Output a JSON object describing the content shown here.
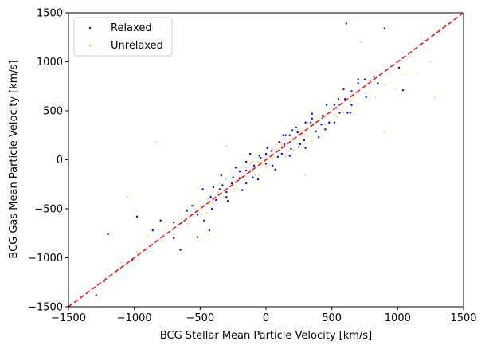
{
  "chart_data": {
    "type": "scatter",
    "title": "",
    "xlabel": "BCG Stellar Mean Particle Velocity [km/s]",
    "ylabel": "BCG Gas Mean Particle Velocity [km/s]",
    "xlim": [
      -1500,
      1500
    ],
    "ylim": [
      -1500,
      1500
    ],
    "xticks": [
      -1500,
      -1000,
      -500,
      0,
      500,
      1000,
      1500
    ],
    "yticks": [
      -1500,
      -1000,
      -500,
      0,
      500,
      1000,
      1500
    ],
    "grid": false,
    "legend": "top-left",
    "reference_line": {
      "style": "dashed",
      "color": "#ff0000",
      "x": [
        -1500,
        1500
      ],
      "y": [
        -1500,
        1500
      ]
    },
    "series": [
      {
        "name": "Relaxed",
        "color": "#0000ff",
        "x": [
          -1290,
          -1230,
          -1015,
          -650,
          -520,
          -430,
          610,
          900,
          1010,
          1040,
          -1200,
          -860,
          -980,
          -700,
          -640,
          -560,
          -600,
          -520,
          -470,
          -420,
          -380,
          -350,
          -300,
          -260,
          -200,
          -150,
          -90,
          -40,
          0,
          40,
          90,
          140,
          190,
          240,
          290,
          340,
          380,
          430,
          480,
          520,
          560,
          600,
          650,
          700,
          760,
          820,
          -480,
          -410,
          -340,
          -290,
          -230,
          -180,
          -120,
          -60,
          10,
          70,
          130,
          180,
          230,
          300,
          350,
          400,
          460,
          520,
          590,
          640,
          700,
          -250,
          -150,
          -50,
          50,
          150,
          250,
          350,
          450,
          300,
          200,
          100,
          0,
          -100,
          -200,
          -300,
          -400,
          550,
          650,
          750,
          850,
          -700,
          -800,
          180,
          420,
          -150,
          260,
          620,
          -330,
          120
        ],
        "y": [
          -1380,
          -1240,
          -1020,
          -920,
          -790,
          -720,
          1390,
          1340,
          940,
          710,
          -760,
          -720,
          -580,
          -800,
          -640,
          -470,
          -520,
          -560,
          -620,
          -380,
          -410,
          -300,
          -330,
          -240,
          -190,
          -110,
          -60,
          20,
          -40,
          90,
          30,
          160,
          110,
          280,
          200,
          380,
          290,
          450,
          380,
          560,
          480,
          620,
          560,
          780,
          640,
          850,
          -300,
          -500,
          -160,
          -420,
          -80,
          -310,
          60,
          -200,
          120,
          -100,
          250,
          40,
          330,
          120,
          470,
          230,
          560,
          380,
          720,
          480,
          820,
          -180,
          -240,
          40,
          -60,
          250,
          130,
          420,
          310,
          380,
          300,
          180,
          60,
          -180,
          -120,
          -380,
          -280,
          620,
          700,
          820,
          780,
          -640,
          -620,
          250,
          360,
          -20,
          160,
          480,
          -260,
          60
        ]
      },
      {
        "name": "Unrelaxed",
        "color": "#ffa500",
        "x": [
          -1200,
          -1100,
          -980,
          -900,
          -820,
          -760,
          -700,
          -640,
          -590,
          -540,
          -490,
          -440,
          -400,
          -360,
          -320,
          -280,
          -240,
          -200,
          -160,
          -120,
          -80,
          -40,
          0,
          40,
          80,
          120,
          160,
          200,
          240,
          280,
          320,
          360,
          400,
          440,
          490,
          540,
          590,
          640,
          700,
          760,
          830,
          900,
          980,
          1060,
          1150,
          1250,
          1380,
          -550,
          -450,
          -350,
          -250,
          -150,
          -50,
          50,
          150,
          250,
          350,
          450,
          -600,
          -500,
          -420,
          -300,
          -220,
          -100,
          20,
          110,
          210,
          320,
          420,
          520,
          -830,
          720,
          1150,
          1280,
          -1050,
          -300,
          300,
          900,
          0,
          -60,
          60,
          -20,
          20,
          -120,
          120,
          540
        ],
        "y": [
          -1120,
          -1050,
          -940,
          -780,
          -850,
          -690,
          -760,
          -600,
          -650,
          -500,
          -560,
          -400,
          -460,
          -330,
          -380,
          -250,
          -300,
          -170,
          -230,
          -100,
          -160,
          -20,
          -70,
          60,
          10,
          140,
          80,
          220,
          160,
          300,
          240,
          380,
          320,
          450,
          400,
          520,
          480,
          600,
          570,
          680,
          640,
          760,
          720,
          860,
          880,
          1000,
          1420,
          -460,
          -540,
          -240,
          -320,
          -80,
          -160,
          110,
          30,
          280,
          190,
          360,
          -560,
          -420,
          -360,
          -200,
          -280,
          -20,
          -60,
          180,
          100,
          380,
          250,
          460,
          180,
          1200,
          1500,
          630,
          -380,
          140,
          -160,
          280,
          40,
          -20,
          100,
          10,
          -40,
          -40,
          160,
          440
        ]
      }
    ]
  }
}
